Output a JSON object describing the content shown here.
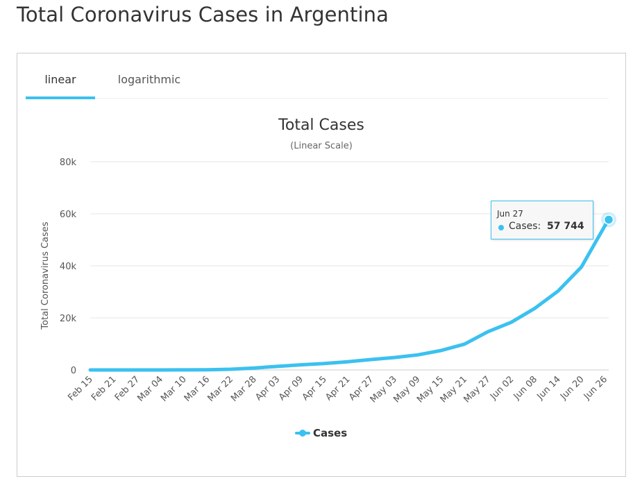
{
  "page_title": "Total Coronavirus Cases in Argentina",
  "tabs": [
    {
      "label": "linear",
      "active": true
    },
    {
      "label": "logarithmic",
      "active": false
    }
  ],
  "accent_color": "#3bc1f0",
  "tooltip": {
    "date": "Jun 27",
    "series_label": "Cases:",
    "value": "57 744"
  },
  "chart_data": {
    "type": "line",
    "title": "Total Cases",
    "subtitle": "(Linear Scale)",
    "ylabel": "Total Coronavirus Cases",
    "xlabel": "",
    "ylim": [
      0,
      80000
    ],
    "y_ticks": [
      "0",
      "20k",
      "40k",
      "60k",
      "80k"
    ],
    "y_tick_values": [
      0,
      20000,
      40000,
      60000,
      80000
    ],
    "x_ticks": [
      "Feb 15",
      "Feb 21",
      "Feb 27",
      "Mar 04",
      "Mar 10",
      "Mar 16",
      "Mar 22",
      "Mar 28",
      "Apr 03",
      "Apr 09",
      "Apr 15",
      "Apr 21",
      "Apr 27",
      "May 03",
      "May 09",
      "May 15",
      "May 21",
      "May 27",
      "Jun 02",
      "Jun 08",
      "Jun 14",
      "Jun 20",
      "Jun 26"
    ],
    "grid": true,
    "legend_position": "bottom-center",
    "series": [
      {
        "name": "Cases",
        "color": "#3bc1f0",
        "x": [
          "Feb 15",
          "Feb 21",
          "Feb 27",
          "Mar 04",
          "Mar 10",
          "Mar 16",
          "Mar 22",
          "Mar 28",
          "Apr 03",
          "Apr 09",
          "Apr 15",
          "Apr 21",
          "Apr 27",
          "May 03",
          "May 09",
          "May 15",
          "May 21",
          "May 27",
          "Jun 02",
          "Jun 08",
          "Jun 14",
          "Jun 20",
          "Jun 26",
          "Jun 27"
        ],
        "values": [
          0,
          0,
          0,
          1,
          17,
          65,
          266,
          745,
          1353,
          1975,
          2443,
          3144,
          4003,
          4783,
          5776,
          7479,
          9931,
          14702,
          18319,
          23620,
          30295,
          39570,
          55343,
          57744
        ]
      }
    ]
  }
}
